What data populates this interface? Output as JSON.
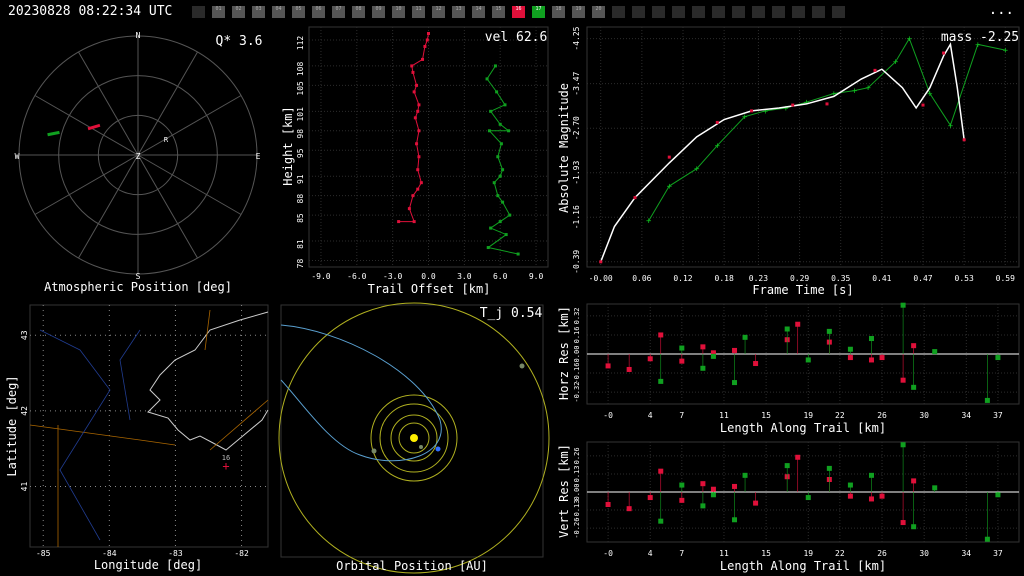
{
  "header": {
    "timestamp": "20230828 08:22:34 UTC",
    "menu": "...",
    "cameras": [
      "",
      "01",
      "02",
      "03",
      "04",
      "05",
      "06",
      "07",
      "08",
      "09",
      "10",
      "11",
      "12",
      "13",
      "14",
      "15",
      "16",
      "17",
      "18",
      "19",
      "20",
      "",
      "",
      "",
      "",
      "",
      "",
      "",
      "",
      "",
      "",
      "",
      ""
    ],
    "highlight": {
      "16": "#e0103a",
      "17": "#10a020"
    }
  },
  "chart_data": [
    {
      "type": "scatter",
      "name": "sky",
      "title": "Atmospheric Position [deg]",
      "label": "Q*  3.6",
      "directions": {
        "n": "N",
        "s": "S",
        "e": "E",
        "w": "W",
        "z": "Z",
        "r": "R"
      },
      "track_red": [
        [
          -0.42,
          0.22
        ],
        [
          -0.32,
          0.25
        ]
      ],
      "track_green": [
        [
          -0.76,
          0.17
        ],
        [
          -0.66,
          0.19
        ]
      ]
    },
    {
      "type": "line",
      "name": "height",
      "xlabel": "Trail Offset [km]",
      "ylabel": "Height [km]",
      "label": "vel 62.6",
      "xticks": [
        "-9.0",
        "-6.0",
        "-3.0",
        "0.0",
        "3.0",
        "6.0",
        "9.0"
      ],
      "yticks": [
        "78",
        "81",
        "85",
        "88",
        "91",
        "95",
        "98",
        "101",
        "105",
        "108",
        "112"
      ],
      "xlim": [
        -10,
        10
      ],
      "ylim": [
        77,
        114
      ],
      "red": [
        [
          -2.5,
          84
        ],
        [
          -1.2,
          84
        ],
        [
          -1.6,
          86
        ],
        [
          -1.3,
          88
        ],
        [
          -0.9,
          89
        ],
        [
          -0.6,
          90
        ],
        [
          -0.9,
          92
        ],
        [
          -0.8,
          94
        ],
        [
          -1.0,
          96
        ],
        [
          -0.8,
          98
        ],
        [
          -1.1,
          100
        ],
        [
          -0.9,
          101
        ],
        [
          -0.8,
          102
        ],
        [
          -1.2,
          104
        ],
        [
          -1.0,
          105
        ],
        [
          -1.3,
          107
        ],
        [
          -1.4,
          108
        ],
        [
          -0.5,
          109
        ],
        [
          -0.3,
          111
        ],
        [
          -0.1,
          112
        ],
        [
          0.0,
          113
        ]
      ],
      "green": [
        [
          7.5,
          79
        ],
        [
          5.0,
          80
        ],
        [
          6.5,
          82
        ],
        [
          5.2,
          83
        ],
        [
          6.0,
          84
        ],
        [
          6.8,
          85
        ],
        [
          6.2,
          87
        ],
        [
          5.8,
          88
        ],
        [
          5.5,
          90
        ],
        [
          6.0,
          91
        ],
        [
          6.2,
          92
        ],
        [
          5.8,
          94
        ],
        [
          6.1,
          96
        ],
        [
          5.1,
          98
        ],
        [
          6.7,
          98
        ],
        [
          6.0,
          99
        ],
        [
          5.2,
          101
        ],
        [
          6.4,
          102
        ],
        [
          5.7,
          104
        ],
        [
          4.9,
          106
        ],
        [
          5.6,
          108
        ]
      ]
    },
    {
      "type": "line",
      "name": "mag",
      "xlabel": "Frame Time [s]",
      "ylabel": "Absolute Magnitude",
      "label": "mass -2.25",
      "xticks": [
        "-0.00",
        "0.06",
        "0.12",
        "0.18",
        "0.23",
        "0.29",
        "0.35",
        "0.41",
        "0.47",
        "0.53",
        "0.59"
      ],
      "yticks": [
        "-0.39",
        "-1.16",
        "-1.93",
        "-2.70",
        "-3.47",
        "-4.25"
      ],
      "xlim": [
        -0.02,
        0.61
      ],
      "ylim": [
        -0.3,
        -4.45
      ],
      "fit": [
        [
          0.0,
          -0.39
        ],
        [
          0.02,
          -1.0
        ],
        [
          0.05,
          -1.5
        ],
        [
          0.1,
          -2.1
        ],
        [
          0.14,
          -2.55
        ],
        [
          0.18,
          -2.85
        ],
        [
          0.22,
          -3.0
        ],
        [
          0.26,
          -3.05
        ],
        [
          0.3,
          -3.12
        ],
        [
          0.34,
          -3.25
        ],
        [
          0.38,
          -3.55
        ],
        [
          0.41,
          -3.72
        ],
        [
          0.44,
          -3.4
        ],
        [
          0.46,
          -3.05
        ],
        [
          0.48,
          -3.4
        ],
        [
          0.5,
          -3.95
        ],
        [
          0.51,
          -4.15
        ],
        [
          0.52,
          -3.4
        ],
        [
          0.53,
          -2.5
        ]
      ],
      "red": [
        [
          0.0,
          -0.39
        ],
        [
          0.05,
          -1.5
        ],
        [
          0.1,
          -2.2
        ],
        [
          0.17,
          -2.8
        ],
        [
          0.22,
          -3.0
        ],
        [
          0.28,
          -3.1
        ],
        [
          0.33,
          -3.12
        ],
        [
          0.4,
          -3.7
        ],
        [
          0.47,
          -3.1
        ],
        [
          0.5,
          -4.0
        ],
        [
          0.53,
          -2.5
        ]
      ],
      "green": [
        [
          0.07,
          -1.1
        ],
        [
          0.1,
          -1.7
        ],
        [
          0.14,
          -2.0
        ],
        [
          0.17,
          -2.4
        ],
        [
          0.21,
          -2.9
        ],
        [
          0.24,
          -3.0
        ],
        [
          0.27,
          -3.05
        ],
        [
          0.3,
          -3.15
        ],
        [
          0.34,
          -3.3
        ],
        [
          0.37,
          -3.35
        ],
        [
          0.39,
          -3.4
        ],
        [
          0.43,
          -3.85
        ],
        [
          0.45,
          -4.25
        ],
        [
          0.48,
          -3.3
        ],
        [
          0.51,
          -2.75
        ],
        [
          0.55,
          -4.15
        ],
        [
          0.59,
          -4.05
        ]
      ]
    },
    {
      "type": "map",
      "name": "geo",
      "xlabel": "Longitude [deg]",
      "ylabel": "Latitude [deg]",
      "xticks": [
        "-85",
        "-84",
        "-83",
        "-82"
      ],
      "yticks": [
        "41",
        "42",
        "43"
      ],
      "marker": "16",
      "xlim": [
        -85.2,
        -81.6
      ],
      "ylim": [
        40.2,
        43.4
      ]
    },
    {
      "type": "scatter",
      "name": "orbit",
      "title": "Orbital Position [AU]",
      "label": "T_j 0.54"
    },
    {
      "type": "scatter",
      "name": "horz",
      "ylabel": "Horz Res [km]",
      "xlabel": "Length Along Trail [km]",
      "xticks": [
        "-0",
        "4",
        "7",
        "11",
        "15",
        "19",
        "22",
        "26",
        "30",
        "34",
        "37"
      ],
      "yticks": [
        "-0.32",
        "-0.16",
        "0.00",
        "0.16",
        "0.32"
      ],
      "xlim": [
        -2,
        39
      ],
      "ylim": [
        -0.42,
        0.42
      ],
      "red": [
        [
          0,
          -0.1
        ],
        [
          2,
          -0.13
        ],
        [
          4,
          -0.04
        ],
        [
          5,
          0.16
        ],
        [
          7,
          -0.06
        ],
        [
          9,
          0.06
        ],
        [
          10,
          0.01
        ],
        [
          12,
          0.03
        ],
        [
          14,
          -0.08
        ],
        [
          17,
          0.12
        ],
        [
          18,
          0.25
        ],
        [
          21,
          0.1
        ],
        [
          23,
          -0.03
        ],
        [
          25,
          -0.05
        ],
        [
          26,
          -0.03
        ],
        [
          28,
          -0.22
        ],
        [
          29,
          0.07
        ]
      ],
      "green": [
        [
          5,
          -0.23
        ],
        [
          7,
          0.05
        ],
        [
          9,
          -0.12
        ],
        [
          10,
          -0.02
        ],
        [
          12,
          -0.24
        ],
        [
          13,
          0.14
        ],
        [
          17,
          0.21
        ],
        [
          19,
          -0.05
        ],
        [
          21,
          0.19
        ],
        [
          23,
          0.04
        ],
        [
          25,
          0.13
        ],
        [
          28,
          0.41
        ],
        [
          29,
          -0.28
        ],
        [
          31,
          0.02
        ],
        [
          36,
          -0.39
        ],
        [
          37,
          -0.03
        ]
      ]
    },
    {
      "type": "scatter",
      "name": "vert",
      "ylabel": "Vert Res [km]",
      "xlabel": "Length Along Trail [km]",
      "xticks": [
        "-0",
        "4",
        "7",
        "11",
        "15",
        "19",
        "22",
        "26",
        "30",
        "34",
        "37"
      ],
      "yticks": [
        "-0.26",
        "-0.13",
        "0.00",
        "0.13",
        "0.26"
      ],
      "xlim": [
        -2,
        39
      ],
      "ylim": [
        -0.36,
        0.36
      ],
      "red": [
        [
          0,
          -0.09
        ],
        [
          2,
          -0.12
        ],
        [
          4,
          -0.04
        ],
        [
          5,
          0.15
        ],
        [
          7,
          -0.06
        ],
        [
          9,
          0.06
        ],
        [
          10,
          0.02
        ],
        [
          12,
          0.04
        ],
        [
          14,
          -0.08
        ],
        [
          17,
          0.11
        ],
        [
          18,
          0.25
        ],
        [
          21,
          0.09
        ],
        [
          23,
          -0.03
        ],
        [
          25,
          -0.05
        ],
        [
          26,
          -0.03
        ],
        [
          28,
          -0.22
        ],
        [
          29,
          0.08
        ]
      ],
      "green": [
        [
          5,
          -0.21
        ],
        [
          7,
          0.05
        ],
        [
          9,
          -0.1
        ],
        [
          10,
          -0.02
        ],
        [
          12,
          -0.2
        ],
        [
          13,
          0.12
        ],
        [
          17,
          0.19
        ],
        [
          19,
          -0.04
        ],
        [
          21,
          0.17
        ],
        [
          23,
          0.05
        ],
        [
          25,
          0.12
        ],
        [
          28,
          0.34
        ],
        [
          29,
          -0.25
        ],
        [
          31,
          0.03
        ],
        [
          36,
          -0.34
        ],
        [
          37,
          -0.02
        ]
      ]
    }
  ]
}
